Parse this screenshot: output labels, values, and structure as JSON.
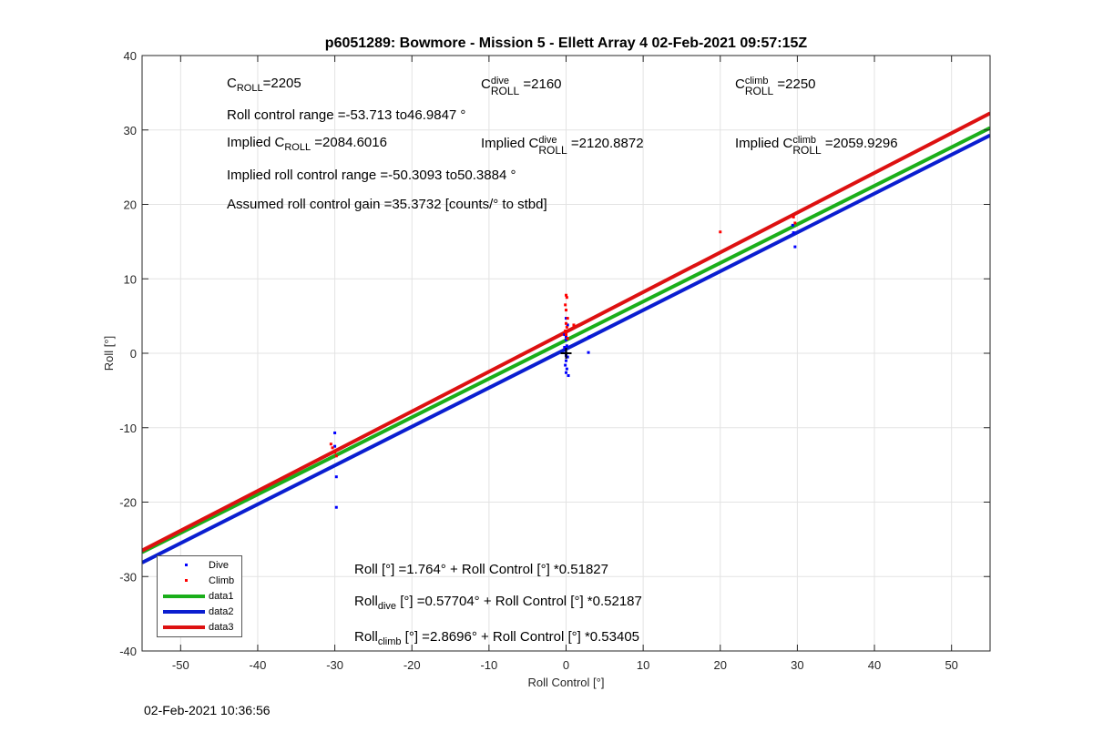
{
  "chart_data": {
    "type": "scatter",
    "title": "p6051289: Bowmore - Mission 5 - Ellett Array 4 02-Feb-2021 09:57:15Z",
    "xlabel": "Roll Control [°]",
    "ylabel": "Roll [°]",
    "xlim": [
      -55,
      55
    ],
    "ylim": [
      -40,
      40
    ],
    "xticks": [
      -50,
      -40,
      -30,
      -20,
      -10,
      0,
      10,
      20,
      30,
      40,
      50
    ],
    "yticks": [
      -40,
      -30,
      -20,
      -10,
      0,
      10,
      20,
      30,
      40
    ],
    "grid": true,
    "legend_position": "bottom-left",
    "series": [
      {
        "name": "Dive",
        "kind": "points",
        "color": "#0000ff",
        "x": [
          -30,
          -29.8,
          -29.8,
          -30,
          0,
          0.2,
          -0.2,
          0,
          0.1,
          -0.1,
          0,
          0.2,
          0,
          -0.1,
          0.1,
          0,
          0.3,
          0,
          -0.2,
          0,
          3,
          2.9,
          29.5,
          29.7,
          29.4
        ],
        "y": [
          -10.7,
          -16.6,
          -20.7,
          -12.5,
          4.7,
          3.8,
          2.5,
          1.8,
          1.0,
          0.5,
          0,
          -0.5,
          -1.0,
          -1.6,
          -2.1,
          -2.6,
          -3.0,
          2.2,
          0.8,
          -0.3,
          2.2,
          0.1,
          16.2,
          14.3,
          17.2
        ]
      },
      {
        "name": "Climb",
        "kind": "points",
        "color": "#ff0000",
        "x": [
          -30.5,
          -30.3,
          -30,
          -29.8,
          0,
          0.1,
          -0.1,
          0,
          0.2,
          0,
          0.1,
          -0.1,
          0,
          0.2,
          1,
          20,
          29.5,
          29.7
        ],
        "y": [
          -12.2,
          -12.7,
          -13.3,
          -13.8,
          7.8,
          7.5,
          6.5,
          5.8,
          4.7,
          4.0,
          3.5,
          3.0,
          2.5,
          2.0,
          3.8,
          16.3,
          18.3,
          17.5
        ]
      },
      {
        "name": "data1",
        "kind": "line",
        "color": "#1aae1a",
        "width": 4,
        "intercept": 1.764,
        "slope": 0.51827
      },
      {
        "name": "data2",
        "kind": "line",
        "color": "#0a1ed0",
        "width": 4,
        "intercept": 0.57704,
        "slope": 0.52187
      },
      {
        "name": "data3",
        "kind": "line",
        "color": "#dd1111",
        "width": 4,
        "intercept": 2.8696,
        "slope": 0.53405
      }
    ],
    "annotations": {
      "c_roll": "C",
      "c_roll_sub": "ROLL",
      "c_roll_val": "=2205",
      "c_dive_sup": "dive",
      "c_dive_val": "=2160",
      "c_climb_sup": "climb",
      "c_climb_val": "=2250",
      "roll_range": "Roll control range =-53.713 to46.9847 °",
      "implied_prefix": "Implied C",
      "implied_roll_val": "=2084.6016",
      "implied_dive_val": "=2120.8872",
      "implied_climb_val": "=2059.9296",
      "implied_range": "Implied roll control range =-50.3093 to50.3884 °",
      "assumed_gain": "Assumed roll control gain =35.3732 [counts/° to stbd]",
      "fit_all": "Roll [°] =1.764° + Roll Control [°] *0.51827",
      "fit_roll": "Roll",
      "fit_dive_sub": "dive",
      "fit_dive_rest": " [°] =0.57704° + Roll Control [°] *0.52187",
      "fit_climb_sub": "climb",
      "fit_climb_rest": " [°] =2.8696° + Roll Control [°] *0.53405"
    }
  },
  "timestamp": "02-Feb-2021 10:36:56"
}
